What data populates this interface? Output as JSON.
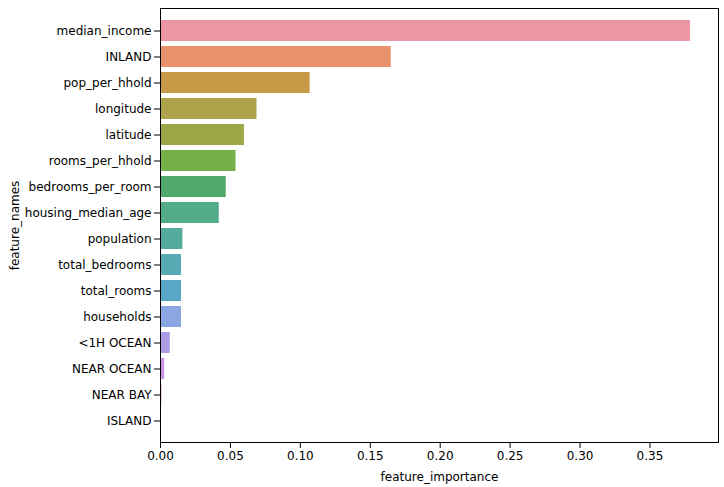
{
  "chart_data": {
    "type": "bar",
    "orientation": "horizontal",
    "x_label": "feature_importance",
    "y_label": "feature_names",
    "categories": [
      "median_income",
      "INLAND",
      "pop_per_hhold",
      "longitude",
      "latitude",
      "rooms_per_hhold",
      "bedrooms_per_room",
      "housing_median_age",
      "population",
      "total_bedrooms",
      "total_rooms",
      "households",
      "<1H OCEAN",
      "NEAR OCEAN",
      "NEAR BAY",
      "ISLAND"
    ],
    "values": [
      0.379,
      0.165,
      0.107,
      0.069,
      0.06,
      0.054,
      0.047,
      0.042,
      0.016,
      0.015,
      0.015,
      0.015,
      0.007,
      0.003,
      0.001,
      0.0001
    ],
    "colors": [
      "#ea96a3",
      "#e8926b",
      "#c89a47",
      "#aea34a",
      "#9ea747",
      "#74b048",
      "#4faa6b",
      "#53ab8a",
      "#54ab9e",
      "#57aab4",
      "#5aa6c9",
      "#8aa6e3",
      "#ad9ce6",
      "#c795e4",
      "#d88fd1",
      "#e58fbd"
    ],
    "xlim": [
      0,
      0.399
    ],
    "xticks": [
      {
        "value": 0,
        "label": "0.00"
      },
      {
        "value": 0.05,
        "label": "0.05"
      },
      {
        "value": 0.1,
        "label": "0.10"
      },
      {
        "value": 0.15,
        "label": "0.15"
      },
      {
        "value": 0.2,
        "label": "0.20"
      },
      {
        "value": 0.25,
        "label": "0.25"
      },
      {
        "value": 0.3,
        "label": "0.30"
      },
      {
        "value": 0.35,
        "label": "0.35"
      }
    ],
    "grid": false
  }
}
